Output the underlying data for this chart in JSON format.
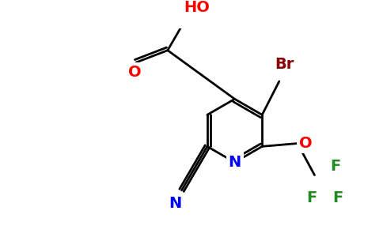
{
  "bg_color": "#ffffff",
  "figsize": [
    4.84,
    3.0
  ],
  "dpi": 100,
  "bond_color": "#000000",
  "atom_colors": {
    "Br": "#8b0000",
    "O": "#ff0000",
    "N": "#0000ff",
    "F": "#228b22",
    "C": "#000000",
    "HO": "#ff0000"
  },
  "lw": 2.0,
  "fs": 14
}
